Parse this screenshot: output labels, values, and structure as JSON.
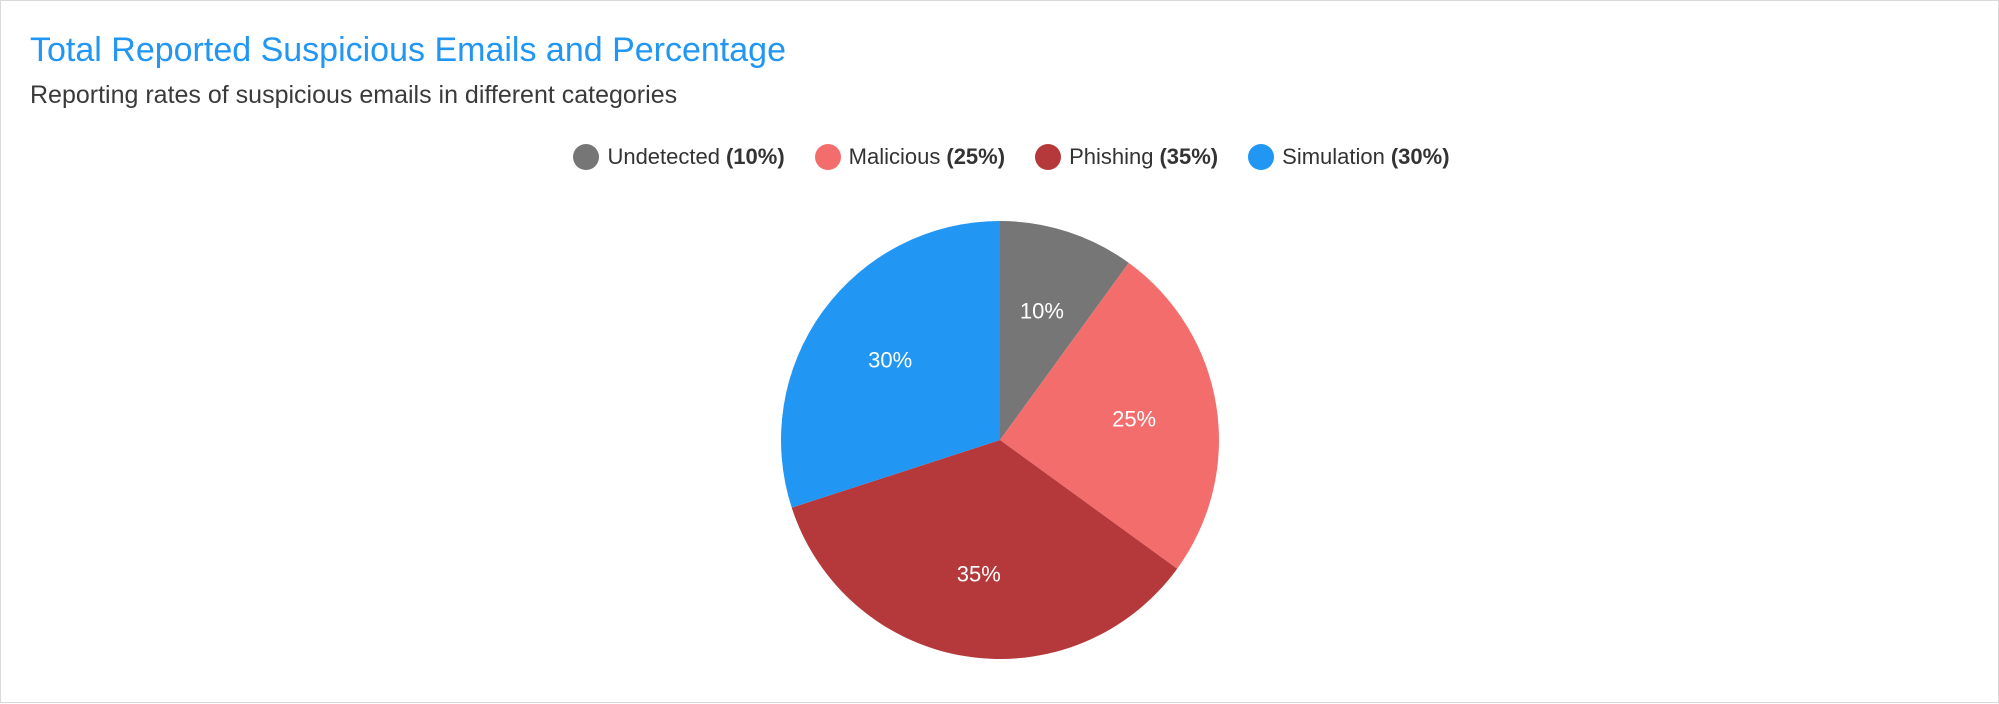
{
  "chart_data": {
    "type": "pie",
    "title": "Total Reported Suspicious Emails and Percentage",
    "subtitle": "Reporting rates of suspicious emails in different categories",
    "legend_position": "top-center",
    "slices": [
      {
        "name": "Undetected",
        "value": 10,
        "label": "10%",
        "legend_value": "(10%)",
        "color": "#767676"
      },
      {
        "name": "Malicious",
        "value": 25,
        "label": "25%",
        "legend_value": "(25%)",
        "color": "#f46d6d"
      },
      {
        "name": "Phishing",
        "value": 35,
        "label": "35%",
        "legend_value": "(35%)",
        "color": "#b5393b"
      },
      {
        "name": "Simulation",
        "value": 30,
        "label": "30%",
        "legend_value": "(30%)",
        "color": "#2196f3"
      }
    ]
  }
}
